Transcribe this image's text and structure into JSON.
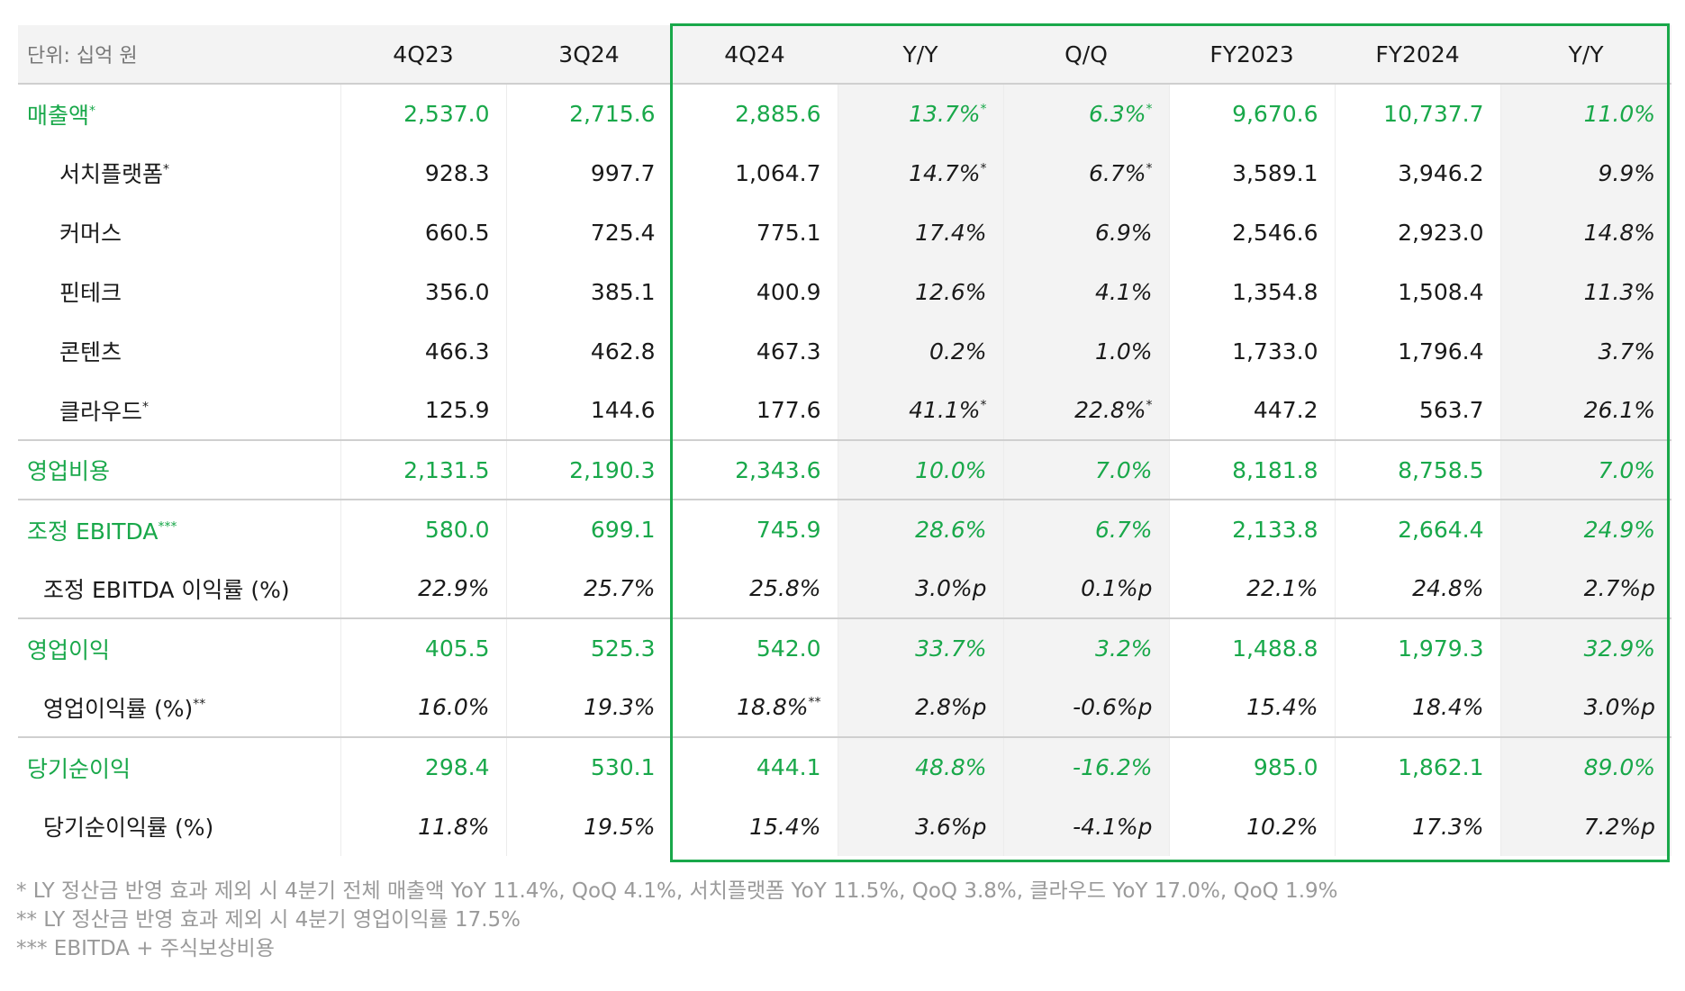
{
  "header": {
    "unit": "단위: 십억 원",
    "columns": [
      "4Q23",
      "3Q24",
      "4Q24",
      "Y/Y",
      "Q/Q",
      "FY2023",
      "FY2024",
      "Y/Y"
    ]
  },
  "rows": [
    {
      "label": "매출액",
      "mark": "*",
      "cells": [
        "2,537.0",
        "2,715.6",
        "2,885.6",
        "13.7%",
        "6.3%",
        "9,670.6",
        "10,737.7",
        "11.0%"
      ],
      "marks": [
        "",
        "",
        "",
        "*",
        "*",
        "",
        "",
        ""
      ]
    },
    {
      "label": "서치플랫폼",
      "mark": "*",
      "cells": [
        "928.3",
        "997.7",
        "1,064.7",
        "14.7%",
        "6.7%",
        "3,589.1",
        "3,946.2",
        "9.9%"
      ],
      "marks": [
        "",
        "",
        "",
        "*",
        "*",
        "",
        "",
        ""
      ]
    },
    {
      "label": "커머스",
      "mark": "",
      "cells": [
        "660.5",
        "725.4",
        "775.1",
        "17.4%",
        "6.9%",
        "2,546.6",
        "2,923.0",
        "14.8%"
      ],
      "marks": [
        "",
        "",
        "",
        "",
        "",
        "",
        "",
        ""
      ]
    },
    {
      "label": "핀테크",
      "mark": "",
      "cells": [
        "356.0",
        "385.1",
        "400.9",
        "12.6%",
        "4.1%",
        "1,354.8",
        "1,508.4",
        "11.3%"
      ],
      "marks": [
        "",
        "",
        "",
        "",
        "",
        "",
        "",
        ""
      ]
    },
    {
      "label": "콘텐츠",
      "mark": "",
      "cells": [
        "466.3",
        "462.8",
        "467.3",
        "0.2%",
        "1.0%",
        "1,733.0",
        "1,796.4",
        "3.7%"
      ],
      "marks": [
        "",
        "",
        "",
        "",
        "",
        "",
        "",
        ""
      ]
    },
    {
      "label": "클라우드",
      "mark": "*",
      "cells": [
        "125.9",
        "144.6",
        "177.6",
        "41.1%",
        "22.8%",
        "447.2",
        "563.7",
        "26.1%"
      ],
      "marks": [
        "",
        "",
        "",
        "*",
        "*",
        "",
        "",
        ""
      ]
    },
    {
      "label": "영업비용",
      "mark": "",
      "cells": [
        "2,131.5",
        "2,190.3",
        "2,343.6",
        "10.0%",
        "7.0%",
        "8,181.8",
        "8,758.5",
        "7.0%"
      ],
      "marks": [
        "",
        "",
        "",
        "",
        "",
        "",
        "",
        ""
      ]
    },
    {
      "label": "조정 EBITDA",
      "mark": "***",
      "cells": [
        "580.0",
        "699.1",
        "745.9",
        "28.6%",
        "6.7%",
        "2,133.8",
        "2,664.4",
        "24.9%"
      ],
      "marks": [
        "",
        "",
        "",
        "",
        "",
        "",
        "",
        ""
      ]
    },
    {
      "label": "조정 EBITDA 이익률 (%)",
      "mark": "",
      "cells": [
        "22.9%",
        "25.7%",
        "25.8%",
        "3.0%p",
        "0.1%p",
        "22.1%",
        "24.8%",
        "2.7%p"
      ],
      "marks": [
        "",
        "",
        "",
        "",
        "",
        "",
        "",
        ""
      ]
    },
    {
      "label": "영업이익",
      "mark": "",
      "cells": [
        "405.5",
        "525.3",
        "542.0",
        "33.7%",
        "3.2%",
        "1,488.8",
        "1,979.3",
        "32.9%"
      ],
      "marks": [
        "",
        "",
        "",
        "",
        "",
        "",
        "",
        ""
      ]
    },
    {
      "label": "영업이익률 (%)",
      "mark": "**",
      "cells": [
        "16.0%",
        "19.3%",
        "18.8%",
        "2.8%p",
        "-0.6%p",
        "15.4%",
        "18.4%",
        "3.0%p"
      ],
      "marks": [
        "",
        "",
        "**",
        "",
        "",
        "",
        "",
        ""
      ]
    },
    {
      "label": "당기순이익",
      "mark": "",
      "cells": [
        "298.4",
        "530.1",
        "444.1",
        "48.8%",
        "-16.2%",
        "985.0",
        "1,862.1",
        "89.0%"
      ],
      "marks": [
        "",
        "",
        "",
        "",
        "",
        "",
        "",
        ""
      ]
    },
    {
      "label": "당기순이익률 (%)",
      "mark": "",
      "cells": [
        "11.8%",
        "19.5%",
        "15.4%",
        "3.6%p",
        "-4.1%p",
        "10.2%",
        "17.3%",
        "7.2%p"
      ],
      "marks": [
        "",
        "",
        "",
        "",
        "",
        "",
        "",
        ""
      ]
    }
  ],
  "footnotes": [
    "* LY 정산금 반영 효과 제외 시 4분기 전체 매출액 YoY 11.4%, QoQ 4.1%, 서치플랫폼 YoY 11.5%, QoQ 3.8%, 클라우드 YoY 17.0%, QoQ 1.9%",
    "** LY 정산금 반영 효과 제외 시 4분기  영업이익률 17.5%",
    "*** EBITDA + 주식보상비용"
  ],
  "colors": {
    "accent": "#19a84a",
    "header_bg": "#f3f3f3",
    "footnote": "#9a9a9a"
  }
}
